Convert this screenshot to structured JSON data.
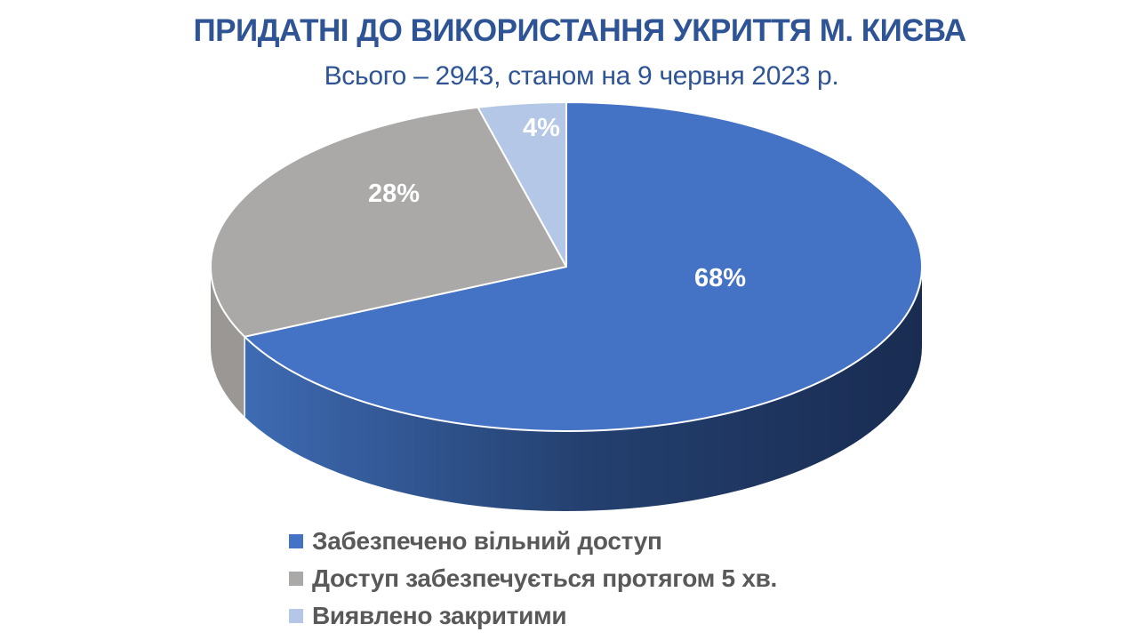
{
  "header": {
    "title": "ПРИДАТНІ ДО ВИКОРИСТАННЯ УКРИТТЯ М. КИЄВА",
    "subtitle": "Всього – 2943, станом на 9 червня 2023 р."
  },
  "colors": {
    "title_text": "#2F5496",
    "legend_text": "#595959",
    "data_label_text": "#FFFFFF",
    "background": "#FFFFFF"
  },
  "chart_data": {
    "type": "pie",
    "style": "3d",
    "title": "ПРИДАТНІ ДО ВИКОРИСТАННЯ УКРИТТЯ М. КИЄВА",
    "subtitle": "Всього – 2943, станом на 9 червня 2023 р.",
    "total_shown": 2943,
    "start_angle_deg": 0,
    "direction": "clockwise",
    "legend_position": "bottom-left",
    "slices": [
      {
        "label": "Забезпечено вільний доступ",
        "value_pct": 68,
        "data_label": "68%",
        "color": "#4472C4",
        "side_gradient": [
          "#3E6BB3",
          "#24406F",
          "#192C52"
        ]
      },
      {
        "label": "Доступ забезпечується протягом 5 хв.",
        "value_pct": 28,
        "data_label": "28%",
        "color": "#ABA9A7",
        "side_color": "#9A9794"
      },
      {
        "label": "Виявлено закритими",
        "value_pct": 4,
        "data_label": "4%",
        "color": "#B4C7E7"
      }
    ]
  }
}
